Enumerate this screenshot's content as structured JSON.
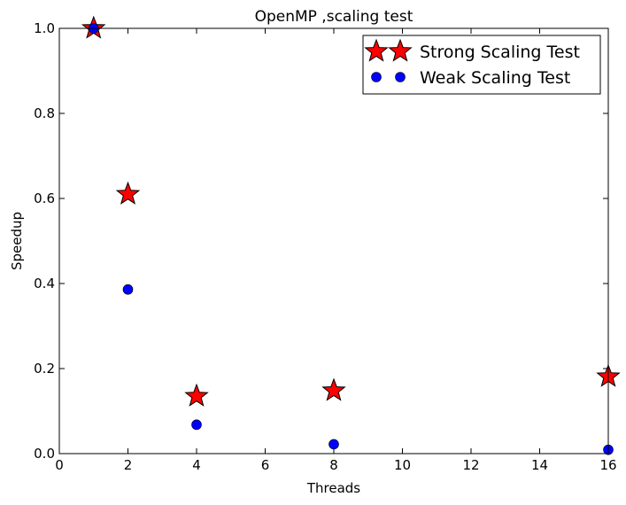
{
  "chart_data": {
    "type": "scatter",
    "title": "OpenMP ,scaling test",
    "xlabel": "Threads",
    "ylabel": "Speedup",
    "xlim": [
      0,
      16
    ],
    "ylim": [
      0.0,
      1.0
    ],
    "xticks": [
      "0",
      "2",
      "4",
      "6",
      "8",
      "10",
      "12",
      "14",
      "16"
    ],
    "yticks": [
      "0.0",
      "0.2",
      "0.4",
      "0.6",
      "0.8",
      "1.0"
    ],
    "grid": false,
    "legend_position": "top-right",
    "series": [
      {
        "name": "Strong Scaling Test",
        "marker": "star",
        "color": "#ff0000",
        "x": [
          1,
          2,
          4,
          8,
          16
        ],
        "y": [
          1.0,
          0.61,
          0.135,
          0.148,
          0.181
        ]
      },
      {
        "name": "Weak Scaling Test",
        "marker": "circle",
        "color": "#0000ff",
        "x": [
          1,
          2,
          4,
          8,
          16
        ],
        "y": [
          1.0,
          0.386,
          0.068,
          0.022,
          0.009
        ]
      }
    ]
  }
}
